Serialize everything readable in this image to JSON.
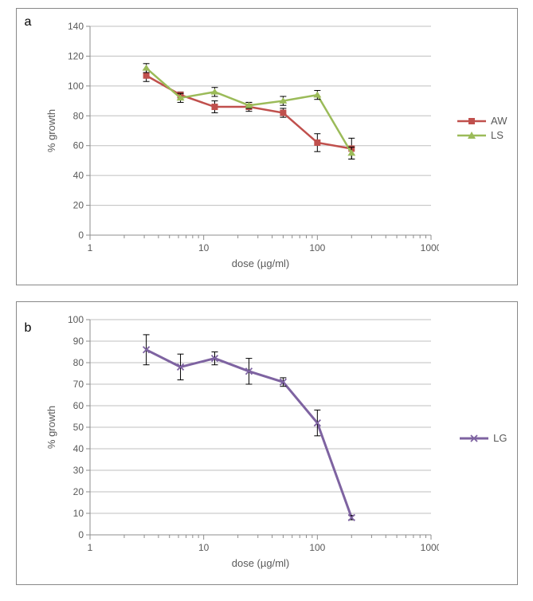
{
  "panelA": {
    "label": "a",
    "type": "line",
    "xlabel": "dose (µg/ml)",
    "ylabel": "% growth",
    "xscale": "log",
    "xlim": [
      1,
      1000
    ],
    "ylim": [
      0,
      140
    ],
    "ytick_step": 20,
    "xticks": [
      1,
      10,
      100,
      1000
    ],
    "background_color": "#ffffff",
    "grid_color": "#bfbfbf",
    "axis_color": "#8c8c8c",
    "tick_color": "#8c8c8c",
    "text_color": "#595959",
    "series": [
      {
        "name": "AW",
        "color": "#c0504d",
        "marker": "square",
        "marker_size": 8,
        "line_width": 2.5,
        "x": [
          3.125,
          6.25,
          12.5,
          25,
          50,
          100,
          200
        ],
        "y": [
          107,
          94,
          86,
          86,
          82,
          62,
          58
        ],
        "err": [
          4,
          2,
          4,
          3,
          3,
          6,
          7
        ]
      },
      {
        "name": "LS",
        "color": "#9bbb59",
        "marker": "triangle",
        "marker_size": 8,
        "line_width": 2.5,
        "x": [
          3.125,
          6.25,
          12.5,
          25,
          50,
          100,
          200
        ],
        "y": [
          112,
          92,
          96,
          87,
          90,
          94,
          55
        ],
        "err": [
          3,
          3,
          3,
          2,
          3,
          3,
          4
        ]
      }
    ]
  },
  "panelB": {
    "label": "b",
    "type": "line",
    "xlabel": "dose (µg/ml)",
    "ylabel": "% growth",
    "xscale": "log",
    "xlim": [
      1,
      1000
    ],
    "ylim": [
      0,
      100
    ],
    "ytick_step": 10,
    "xticks": [
      1,
      10,
      100,
      1000
    ],
    "background_color": "#ffffff",
    "grid_color": "#bfbfbf",
    "axis_color": "#8c8c8c",
    "tick_color": "#8c8c8c",
    "text_color": "#595959",
    "series": [
      {
        "name": "LG",
        "color": "#7e63a1",
        "marker": "x",
        "marker_size": 8,
        "line_width": 3,
        "x": [
          3.125,
          6.25,
          12.5,
          25,
          50,
          100,
          200
        ],
        "y": [
          86,
          78,
          82,
          76,
          71,
          52,
          8
        ],
        "err": [
          7,
          6,
          3,
          6,
          2,
          6,
          1
        ]
      }
    ]
  }
}
